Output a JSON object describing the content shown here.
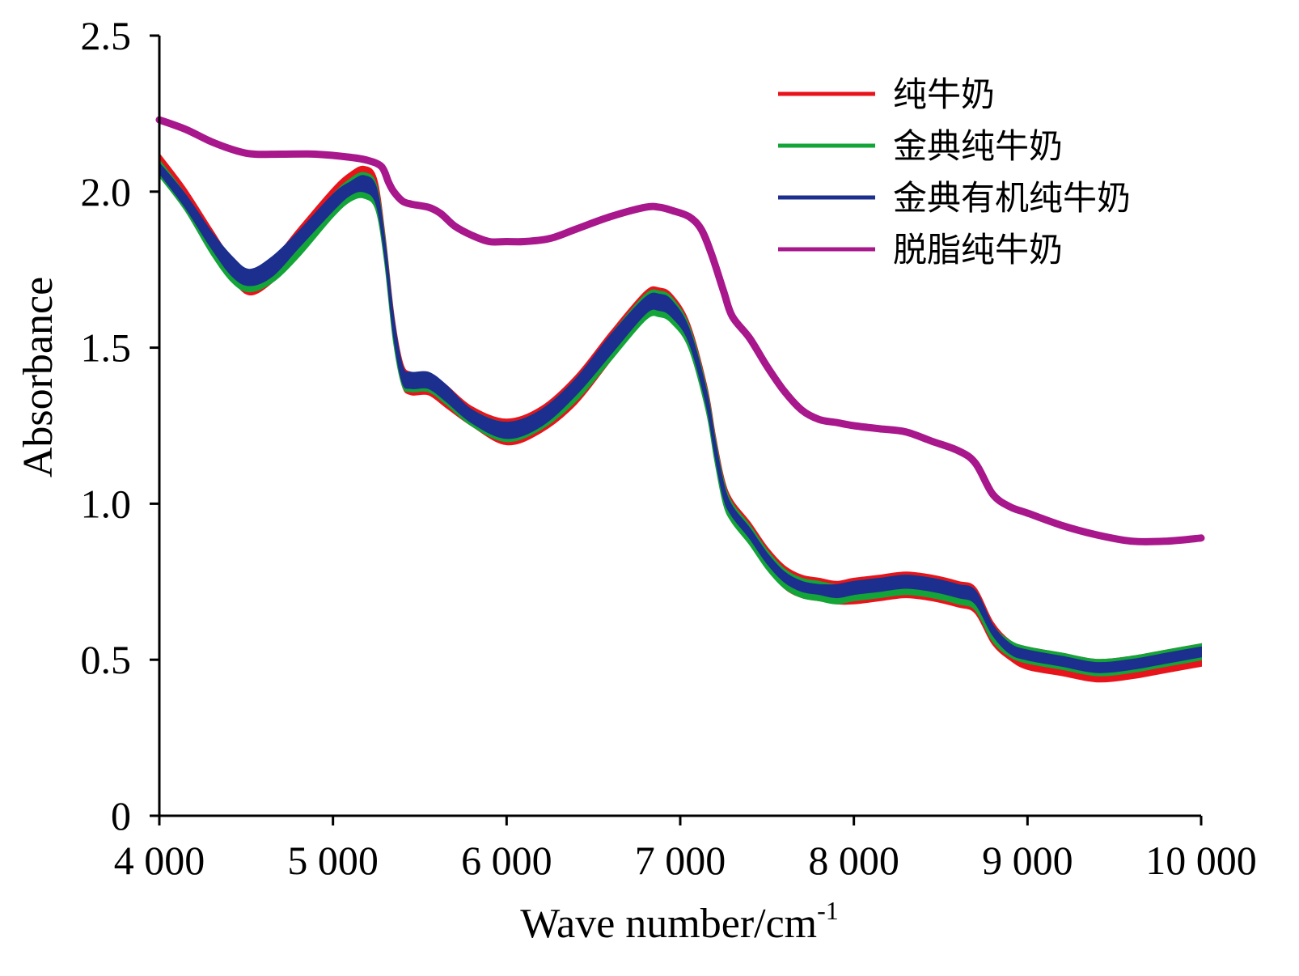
{
  "chart_data": {
    "type": "line",
    "xlabel": "Wave number/cm",
    "xlabel_superscript": "-1",
    "ylabel": "Absorbance",
    "xlim": [
      4000,
      10000
    ],
    "ylim": [
      0,
      2.5
    ],
    "x_ticks": [
      {
        "value": 4000,
        "label": "4 000"
      },
      {
        "value": 5000,
        "label": "5 000"
      },
      {
        "value": 6000,
        "label": "6 000"
      },
      {
        "value": 7000,
        "label": "7 000"
      },
      {
        "value": 8000,
        "label": "8 000"
      },
      {
        "value": 9000,
        "label": "9 000"
      },
      {
        "value": 10000,
        "label": "10 000"
      }
    ],
    "y_ticks": [
      {
        "value": 0,
        "label": "0"
      },
      {
        "value": 0.5,
        "label": "0.5"
      },
      {
        "value": 1.0,
        "label": "1.0"
      },
      {
        "value": 1.5,
        "label": "1.5"
      },
      {
        "value": 2.0,
        "label": "2.0"
      },
      {
        "value": 2.5,
        "label": "2.5"
      }
    ],
    "grid": false,
    "legend_position": "top-right",
    "series": [
      {
        "name": "纯牛奶",
        "color": "#e8141b",
        "band": true,
        "x": [
          4000,
          4150,
          4300,
          4420,
          4520,
          4650,
          4800,
          5000,
          5100,
          5180,
          5250,
          5300,
          5350,
          5400,
          5450,
          5550,
          5650,
          5800,
          6000,
          6200,
          6400,
          6600,
          6800,
          6880,
          6950,
          7050,
          7150,
          7200,
          7250,
          7300,
          7400,
          7500,
          7600,
          7700,
          7800,
          7900,
          8000,
          8150,
          8300,
          8450,
          8600,
          8700,
          8800,
          8900,
          9000,
          9200,
          9400,
          9600,
          9800,
          10000
        ],
        "upper": [
          2.12,
          2.01,
          1.88,
          1.78,
          1.74,
          1.78,
          1.88,
          2.01,
          2.06,
          2.08,
          2.04,
          1.85,
          1.6,
          1.45,
          1.42,
          1.42,
          1.38,
          1.31,
          1.27,
          1.31,
          1.41,
          1.55,
          1.68,
          1.69,
          1.67,
          1.58,
          1.38,
          1.22,
          1.08,
          1.01,
          0.94,
          0.86,
          0.8,
          0.77,
          0.76,
          0.75,
          0.76,
          0.77,
          0.78,
          0.77,
          0.75,
          0.73,
          0.62,
          0.56,
          0.54,
          0.52,
          0.5,
          0.51,
          0.53,
          0.55
        ],
        "lower": [
          2.07,
          1.95,
          1.81,
          1.72,
          1.67,
          1.71,
          1.8,
          1.93,
          1.98,
          2.0,
          1.96,
          1.78,
          1.53,
          1.38,
          1.35,
          1.35,
          1.31,
          1.25,
          1.19,
          1.23,
          1.32,
          1.46,
          1.6,
          1.61,
          1.59,
          1.51,
          1.31,
          1.15,
          1.01,
          0.95,
          0.88,
          0.8,
          0.73,
          0.7,
          0.69,
          0.68,
          0.68,
          0.69,
          0.7,
          0.69,
          0.67,
          0.65,
          0.55,
          0.5,
          0.47,
          0.45,
          0.43,
          0.44,
          0.46,
          0.48
        ]
      },
      {
        "name": "金典纯牛奶",
        "color": "#13a538",
        "band": true,
        "x": [
          4000,
          4150,
          4300,
          4420,
          4520,
          4650,
          4800,
          5000,
          5100,
          5180,
          5250,
          5300,
          5350,
          5400,
          5450,
          5550,
          5650,
          5800,
          6000,
          6200,
          6400,
          6600,
          6800,
          6880,
          6950,
          7050,
          7150,
          7200,
          7250,
          7300,
          7400,
          7500,
          7600,
          7700,
          7800,
          7900,
          8000,
          8150,
          8300,
          8450,
          8600,
          8700,
          8800,
          8900,
          9000,
          9200,
          9400,
          9600,
          9800,
          10000
        ],
        "upper": [
          2.1,
          1.99,
          1.86,
          1.77,
          1.73,
          1.77,
          1.86,
          1.99,
          2.04,
          2.06,
          2.02,
          1.84,
          1.59,
          1.44,
          1.41,
          1.41,
          1.37,
          1.3,
          1.26,
          1.3,
          1.4,
          1.54,
          1.67,
          1.68,
          1.66,
          1.57,
          1.37,
          1.21,
          1.07,
          1.0,
          0.93,
          0.85,
          0.79,
          0.76,
          0.75,
          0.74,
          0.75,
          0.76,
          0.77,
          0.76,
          0.74,
          0.72,
          0.61,
          0.56,
          0.54,
          0.52,
          0.5,
          0.51,
          0.53,
          0.55
        ],
        "lower": [
          2.05,
          1.94,
          1.8,
          1.71,
          1.68,
          1.71,
          1.79,
          1.92,
          1.97,
          1.98,
          1.94,
          1.77,
          1.52,
          1.38,
          1.36,
          1.36,
          1.32,
          1.25,
          1.2,
          1.24,
          1.33,
          1.46,
          1.59,
          1.6,
          1.58,
          1.5,
          1.3,
          1.14,
          1.0,
          0.94,
          0.87,
          0.79,
          0.73,
          0.7,
          0.69,
          0.68,
          0.69,
          0.7,
          0.71,
          0.7,
          0.68,
          0.66,
          0.56,
          0.51,
          0.49,
          0.47,
          0.45,
          0.46,
          0.48,
          0.5
        ]
      },
      {
        "name": "金典有机纯牛奶",
        "color": "#1c2f8e",
        "band": true,
        "x": [
          4000,
          4150,
          4300,
          4420,
          4520,
          4650,
          4800,
          5000,
          5100,
          5180,
          5250,
          5300,
          5350,
          5400,
          5450,
          5550,
          5650,
          5800,
          6000,
          6200,
          6400,
          6600,
          6800,
          6880,
          6950,
          7050,
          7150,
          7200,
          7250,
          7300,
          7400,
          7500,
          7600,
          7700,
          7800,
          7900,
          8000,
          8150,
          8300,
          8450,
          8600,
          8700,
          8800,
          8900,
          9000,
          9200,
          9400,
          9600,
          9800,
          10000
        ],
        "upper": [
          2.09,
          1.99,
          1.87,
          1.79,
          1.75,
          1.79,
          1.87,
          1.99,
          2.03,
          2.05,
          2.01,
          1.83,
          1.59,
          1.44,
          1.42,
          1.42,
          1.38,
          1.3,
          1.26,
          1.3,
          1.4,
          1.54,
          1.66,
          1.67,
          1.65,
          1.56,
          1.36,
          1.2,
          1.06,
          0.99,
          0.92,
          0.84,
          0.78,
          0.75,
          0.74,
          0.74,
          0.75,
          0.76,
          0.77,
          0.76,
          0.74,
          0.72,
          0.61,
          0.55,
          0.53,
          0.51,
          0.49,
          0.5,
          0.52,
          0.54
        ],
        "lower": [
          2.06,
          1.95,
          1.82,
          1.73,
          1.7,
          1.73,
          1.82,
          1.94,
          1.99,
          2.0,
          1.96,
          1.79,
          1.54,
          1.39,
          1.37,
          1.37,
          1.33,
          1.26,
          1.21,
          1.25,
          1.35,
          1.48,
          1.61,
          1.62,
          1.6,
          1.52,
          1.32,
          1.16,
          1.02,
          0.96,
          0.89,
          0.81,
          0.75,
          0.72,
          0.71,
          0.7,
          0.71,
          0.72,
          0.73,
          0.72,
          0.7,
          0.68,
          0.58,
          0.52,
          0.5,
          0.48,
          0.46,
          0.47,
          0.49,
          0.51
        ]
      },
      {
        "name": "脱脂纯牛奶",
        "color": "#a8178b",
        "band": false,
        "x": [
          4000,
          4150,
          4300,
          4450,
          4550,
          4700,
          4900,
          5100,
          5200,
          5280,
          5320,
          5350,
          5400,
          5450,
          5550,
          5620,
          5700,
          5800,
          5900,
          6000,
          6100,
          6250,
          6400,
          6600,
          6800,
          6880,
          6950,
          7050,
          7120,
          7180,
          7250,
          7300,
          7400,
          7500,
          7600,
          7700,
          7800,
          7900,
          8000,
          8150,
          8300,
          8450,
          8600,
          8700,
          8800,
          8900,
          9000,
          9200,
          9400,
          9600,
          9800,
          10000
        ],
        "y": [
          2.23,
          2.2,
          2.16,
          2.13,
          2.12,
          2.12,
          2.12,
          2.11,
          2.1,
          2.08,
          2.03,
          2.0,
          1.97,
          1.96,
          1.95,
          1.93,
          1.89,
          1.86,
          1.84,
          1.84,
          1.84,
          1.85,
          1.88,
          1.92,
          1.95,
          1.95,
          1.94,
          1.92,
          1.88,
          1.8,
          1.68,
          1.6,
          1.53,
          1.44,
          1.36,
          1.3,
          1.27,
          1.26,
          1.25,
          1.24,
          1.23,
          1.2,
          1.17,
          1.13,
          1.03,
          0.99,
          0.97,
          0.93,
          0.9,
          0.88,
          0.88,
          0.89
        ]
      }
    ]
  }
}
